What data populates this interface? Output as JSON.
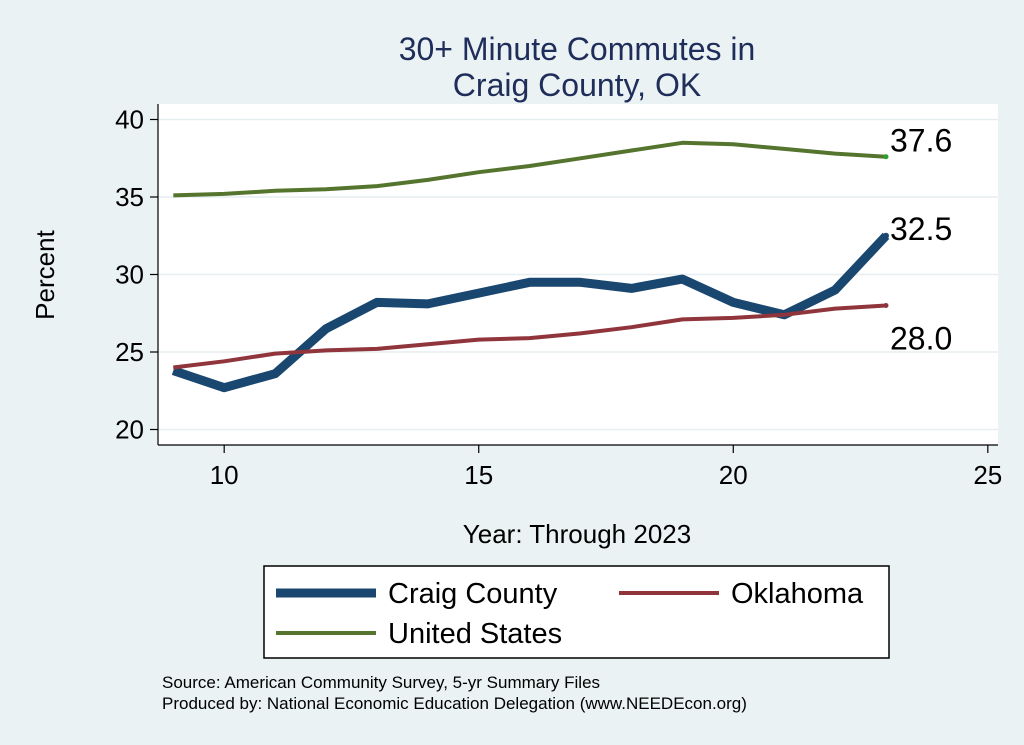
{
  "chart_data": {
    "type": "line",
    "title": [
      "30+ Minute Commutes in",
      "Craig County, OK"
    ],
    "xlabel": "Year: Through 2023",
    "ylabel": "Percent",
    "xlim": [
      8.7,
      25.2
    ],
    "ylim": [
      19,
      41
    ],
    "xticks": [
      10,
      15,
      20,
      25
    ],
    "yticks": [
      20,
      25,
      30,
      35,
      40
    ],
    "grid": true,
    "x": [
      9,
      10,
      11,
      12,
      13,
      14,
      15,
      16,
      17,
      18,
      19,
      20,
      21,
      22,
      23
    ],
    "series": [
      {
        "name": "Craig County",
        "color": "#1a476f",
        "values": [
          23.8,
          22.7,
          23.6,
          26.5,
          28.2,
          28.1,
          28.8,
          29.5,
          29.5,
          29.1,
          29.7,
          28.2,
          27.4,
          29.0,
          32.5
        ],
        "end_label": "32.5"
      },
      {
        "name": "Oklahoma",
        "color": "#90353b",
        "values": [
          24.0,
          24.4,
          24.9,
          25.1,
          25.2,
          25.5,
          25.8,
          25.9,
          26.2,
          26.6,
          27.1,
          27.2,
          27.4,
          27.8,
          28.0
        ],
        "end_label": "28.0"
      },
      {
        "name": "United States",
        "color": "#55752f",
        "values": [
          35.1,
          35.2,
          35.4,
          35.5,
          35.7,
          36.1,
          36.6,
          37.0,
          37.5,
          38.0,
          38.5,
          38.4,
          38.1,
          37.8,
          37.6
        ],
        "end_label": "37.6"
      }
    ],
    "legend_placement": "bottom"
  },
  "footer": {
    "source_line": "Source: American Community Survey, 5-yr Summary Files",
    "produced_line": "Produced by: National Economic Education Delegation (www.NEEDEcon.org)"
  }
}
